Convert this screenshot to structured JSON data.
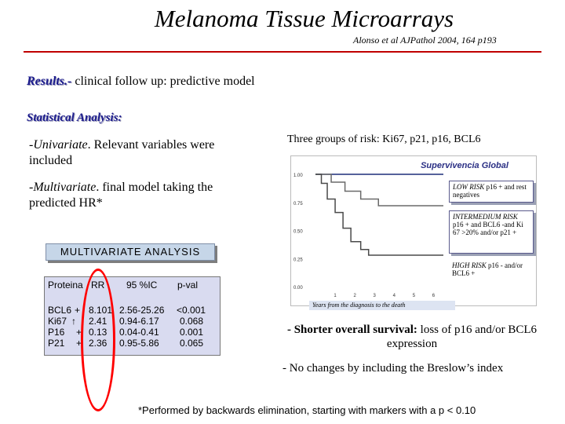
{
  "slide": {
    "title": "Melanoma Tissue Microarrays",
    "citation": "Alonso et al  AJPathol 2004, 164 p193",
    "results_label": "Results.-",
    "results_text": " clinical follow up:  predictive model",
    "stat_label": "Statistical Analysis:",
    "univariate_term": "-Univariate",
    "univariate_text": ". Relevant variables were included",
    "multivariate_term": "-Multivariate",
    "multivariate_text": ". final model taking the predicted HR*",
    "mva_title": "MULTIVARIATE ANALYSIS",
    "groups_text": "Three groups of risk: Ki67, p21, p16, BCL6",
    "shorter_label": "- Shorter overall survival:",
    "shorter_text": " loss of p16 and/or BCL6 expression",
    "breslow_text": "- No changes by including the Breslow’s index",
    "footnote": "*Performed by backwards elimination, starting with markers with a p < 0.10"
  },
  "table": {
    "headers": [
      "Proteina",
      "RR",
      "95 %IC",
      "p-val"
    ],
    "rows": [
      {
        "protein": "BCL6",
        "sign": "+",
        "rr": "8.101",
        "ci": "2.56-25.26",
        "p": "<0.001"
      },
      {
        "protein": "Ki67",
        "sign": "↑",
        "rr": "2.41",
        "ci": "0.94-6.17",
        "p": "0.068"
      },
      {
        "protein": "P16",
        "sign": "+",
        "rr": "0.13",
        "ci": "0.04-0.41",
        "p": "0.001"
      },
      {
        "protein": "P21",
        "sign": "+",
        "rr": "2.36",
        "ci": "0.95-5.86",
        "p": "0.065"
      }
    ]
  },
  "chart_data": {
    "type": "line",
    "title": "Supervivencia Global",
    "xlabel": "Years from the diagnosis to the death",
    "ylabel": "",
    "x_ticks": [
      "1",
      "2",
      "3",
      "4",
      "5",
      "6"
    ],
    "y_ticks": [
      "1.00",
      "0.75",
      "0.50",
      "0.25",
      "0.00"
    ],
    "xlim": [
      0,
      6.5
    ],
    "ylim": [
      0,
      1
    ],
    "series": [
      {
        "name": "LOW RISK",
        "x": [
          0,
          6.5
        ],
        "y": [
          1.0,
          1.0
        ],
        "color": "#1f2f7a"
      },
      {
        "name": "INTERMEDIUM RISK",
        "x": [
          0,
          0.8,
          0.8,
          1.5,
          1.5,
          2.3,
          2.3,
          3.2,
          3.2,
          6.5
        ],
        "y": [
          1.0,
          1.0,
          0.93,
          0.93,
          0.85,
          0.85,
          0.78,
          0.78,
          0.72,
          0.72
        ],
        "color": "#6a6a6a"
      },
      {
        "name": "HIGH RISK",
        "x": [
          0,
          0.3,
          0.3,
          0.6,
          0.6,
          1.0,
          1.0,
          1.4,
          1.4,
          1.8,
          1.8,
          2.3,
          2.3,
          2.7,
          2.7,
          6.5
        ],
        "y": [
          1.0,
          1.0,
          0.92,
          0.92,
          0.78,
          0.78,
          0.66,
          0.66,
          0.52,
          0.52,
          0.4,
          0.4,
          0.33,
          0.33,
          0.28,
          0.28
        ],
        "color": "#4a4a4a"
      }
    ],
    "legend": {
      "low_label": "LOW RISK",
      "low_text": " p16 + and rest negatives",
      "int_label": "INTERMEDIUM RISK",
      "int_text": " p16 + and  BCL6 -and Ki 67 >20% and/or p21 +",
      "high_label": "HIGH RISK",
      "high_text": " p16 - and/or  BCL6 +"
    }
  }
}
